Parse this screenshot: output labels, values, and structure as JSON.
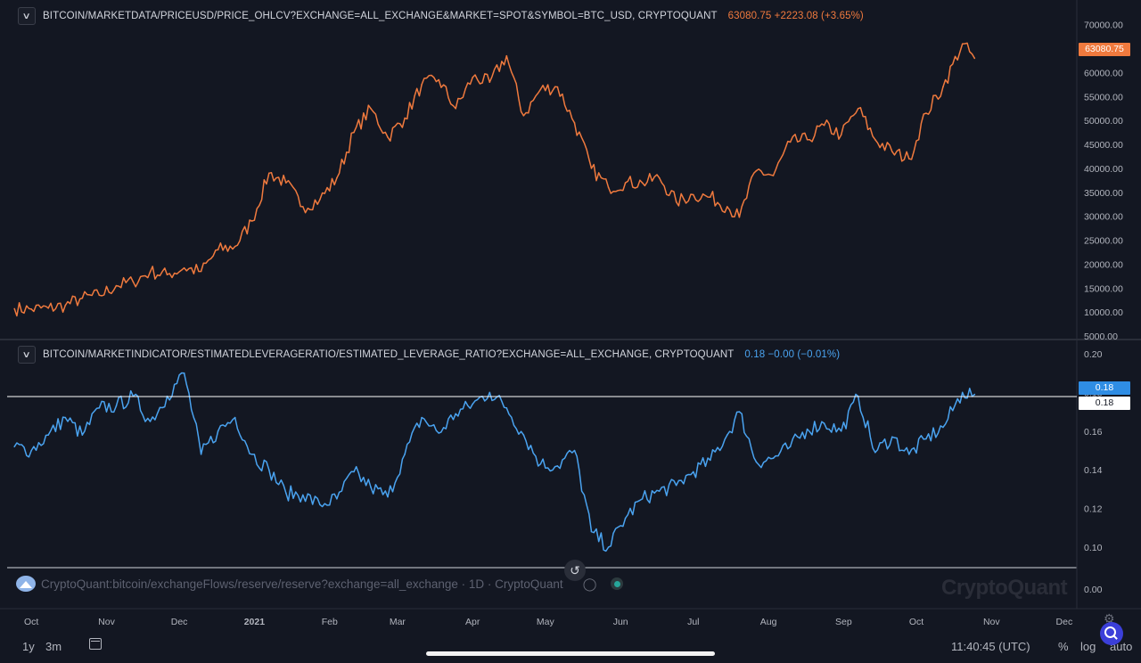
{
  "price_header": {
    "symbol": "BITCOIN/MARKETDATA/PRICEUSD/PRICE_OHLCV?EXCHANGE=ALL_EXCHANGE&MARKET=SPOT&SYMBOL=BTC_USD, CRYPTOQUANT",
    "value": "63080.75 +2223.08 (+3.65%)",
    "tag": "63080.75"
  },
  "leverage_header": {
    "symbol": "BITCOIN/MARKETINDICATOR/ESTIMATEDLEVERAGERATIO/ESTIMATED_LEVERAGE_RATIO?EXCHANGE=ALL_EXCHANGE, CRYPTOQUANT",
    "value": "0.18 −0.00 (−0.01%)",
    "tag": "0.18",
    "crosshair_tag": "0.18"
  },
  "layer3": {
    "label": "CryptoQuant:bitcoin/exchangeFlows/reserve/reserve?exchange=all_exchange · 1D · CryptoQuant"
  },
  "watermark": "CryptoQuant",
  "bottom": {
    "range_1y": "1y",
    "range_3m": "3m",
    "time": "11:40:45 (UTC)",
    "percent": "%",
    "log": "log",
    "auto": "auto"
  },
  "colors": {
    "price": "#f07a3e",
    "leverage": "#4aa3f0",
    "background": "#131722"
  },
  "icons": [
    "chevron-down-icon",
    "reset-icon",
    "eye-off-icon",
    "status-dot-icon",
    "calendar-icon",
    "gear-icon",
    "zoom-icon",
    "cryptoquant-logo-icon"
  ],
  "chart_data": [
    {
      "type": "line",
      "title": "BITCOIN/MARKETDATA/PRICEUSD/PRICE_OHLCV?EXCHANGE=ALL_EXCHANGE&MARKET=SPOT&SYMBOL=BTC_USD, CRYPTOQUANT",
      "x": [
        "2020-09-24",
        "2020-10-01",
        "2020-10-08",
        "2020-10-15",
        "2020-10-22",
        "2020-10-29",
        "2020-11-05",
        "2020-11-12",
        "2020-11-19",
        "2020-11-26",
        "2020-12-03",
        "2020-12-10",
        "2020-12-17",
        "2020-12-24",
        "2020-12-31",
        "2021-01-07",
        "2021-01-14",
        "2021-01-21",
        "2021-01-28",
        "2021-02-04",
        "2021-02-11",
        "2021-02-18",
        "2021-02-25",
        "2021-03-04",
        "2021-03-11",
        "2021-03-18",
        "2021-03-25",
        "2021-04-01",
        "2021-04-08",
        "2021-04-15",
        "2021-04-22",
        "2021-04-29",
        "2021-05-06",
        "2021-05-13",
        "2021-05-20",
        "2021-05-27",
        "2021-06-03",
        "2021-06-10",
        "2021-06-17",
        "2021-06-24",
        "2021-07-01",
        "2021-07-08",
        "2021-07-15",
        "2021-07-20",
        "2021-07-27",
        "2021-08-03",
        "2021-08-10",
        "2021-08-17",
        "2021-08-24",
        "2021-08-31",
        "2021-09-07",
        "2021-09-14",
        "2021-09-21",
        "2021-09-28",
        "2021-10-05",
        "2021-10-12",
        "2021-10-20",
        "2021-10-25"
      ],
      "series": [
        {
          "values": [
            10700,
            10600,
            10800,
            11400,
            12900,
            13500,
            15500,
            16300,
            18400,
            17800,
            19200,
            18500,
            23000,
            23700,
            29000,
            39000,
            37000,
            32000,
            33500,
            38000,
            47500,
            52500,
            46500,
            50500,
            57500,
            58500,
            52500,
            59000,
            58000,
            63500,
            51000,
            56500,
            57000,
            49500,
            40000,
            36000,
            37000,
            37000,
            38000,
            33000,
            34500,
            34000,
            32000,
            29800,
            39500,
            38500,
            45500,
            46000,
            49000,
            47000,
            52500,
            46000,
            43500,
            42000,
            51500,
            57000,
            66000,
            63000
          ]
        }
      ],
      "ylim": [
        5000,
        72000
      ],
      "y_ticks": [
        "70000.00",
        "65000.00",
        "60000.00",
        "55000.00",
        "50000.00",
        "45000.00",
        "40000.00",
        "35000.00",
        "30000.00",
        "25000.00",
        "20000.00",
        "15000.00",
        "10000.00",
        "5000.00"
      ],
      "legend": "none"
    },
    {
      "type": "line",
      "title": "BITCOIN/MARKETINDICATOR/ESTIMATEDLEVERAGERATIO/ESTIMATED_LEVERAGE_RATIO?EXCHANGE=ALL_EXCHANGE, CRYPTOQUANT",
      "x": [
        "2020-09-24",
        "2020-10-01",
        "2020-10-08",
        "2020-10-15",
        "2020-10-22",
        "2020-10-29",
        "2020-11-05",
        "2020-11-12",
        "2020-11-19",
        "2020-11-26",
        "2020-12-03",
        "2020-12-10",
        "2020-12-17",
        "2020-12-24",
        "2020-12-31",
        "2021-01-07",
        "2021-01-14",
        "2021-01-21",
        "2021-01-28",
        "2021-02-04",
        "2021-02-11",
        "2021-02-18",
        "2021-02-25",
        "2021-03-04",
        "2021-03-11",
        "2021-03-18",
        "2021-03-25",
        "2021-04-01",
        "2021-04-08",
        "2021-04-15",
        "2021-04-22",
        "2021-04-29",
        "2021-05-06",
        "2021-05-13",
        "2021-05-20",
        "2021-05-27",
        "2021-06-03",
        "2021-06-10",
        "2021-06-17",
        "2021-06-24",
        "2021-07-01",
        "2021-07-08",
        "2021-07-15",
        "2021-07-20",
        "2021-07-27",
        "2021-08-03",
        "2021-08-10",
        "2021-08-17",
        "2021-08-24",
        "2021-08-31",
        "2021-09-07",
        "2021-09-14",
        "2021-09-21",
        "2021-09-28",
        "2021-10-05",
        "2021-10-12",
        "2021-10-20",
        "2021-10-25"
      ],
      "series": [
        {
          "values": [
            0.152,
            0.15,
            0.158,
            0.167,
            0.158,
            0.172,
            0.173,
            0.178,
            0.165,
            0.178,
            0.19,
            0.148,
            0.16,
            0.167,
            0.148,
            0.14,
            0.128,
            0.127,
            0.122,
            0.125,
            0.139,
            0.131,
            0.126,
            0.148,
            0.167,
            0.159,
            0.169,
            0.174,
            0.18,
            0.172,
            0.158,
            0.143,
            0.142,
            0.15,
            0.108,
            0.1,
            0.115,
            0.125,
            0.129,
            0.132,
            0.139,
            0.145,
            0.158,
            0.17,
            0.144,
            0.146,
            0.152,
            0.161,
            0.164,
            0.16,
            0.178,
            0.149,
            0.157,
            0.148,
            0.156,
            0.162,
            0.18,
            0.179
          ]
        }
      ],
      "ylim": [
        -0.01,
        0.205
      ],
      "y_ticks": [
        "0.20",
        "0.18",
        "0.16",
        "0.14",
        "0.12",
        "0.10",
        "0.00"
      ],
      "legend": "none"
    }
  ],
  "x_axis": {
    "labels": [
      "Oct",
      "Nov",
      "Dec",
      "2021",
      "Feb",
      "Mar",
      "Apr",
      "May",
      "Jun",
      "Jul",
      "Aug",
      "Sep",
      "Oct",
      "Nov",
      "Dec"
    ],
    "dates": [
      "2020-10-01",
      "2020-11-01",
      "2020-12-01",
      "2021-01-01",
      "2021-02-01",
      "2021-03-01",
      "2021-04-01",
      "2021-05-01",
      "2021-06-01",
      "2021-07-01",
      "2021-08-01",
      "2021-09-01",
      "2021-10-01",
      "2021-11-01",
      "2021-12-01"
    ]
  }
}
